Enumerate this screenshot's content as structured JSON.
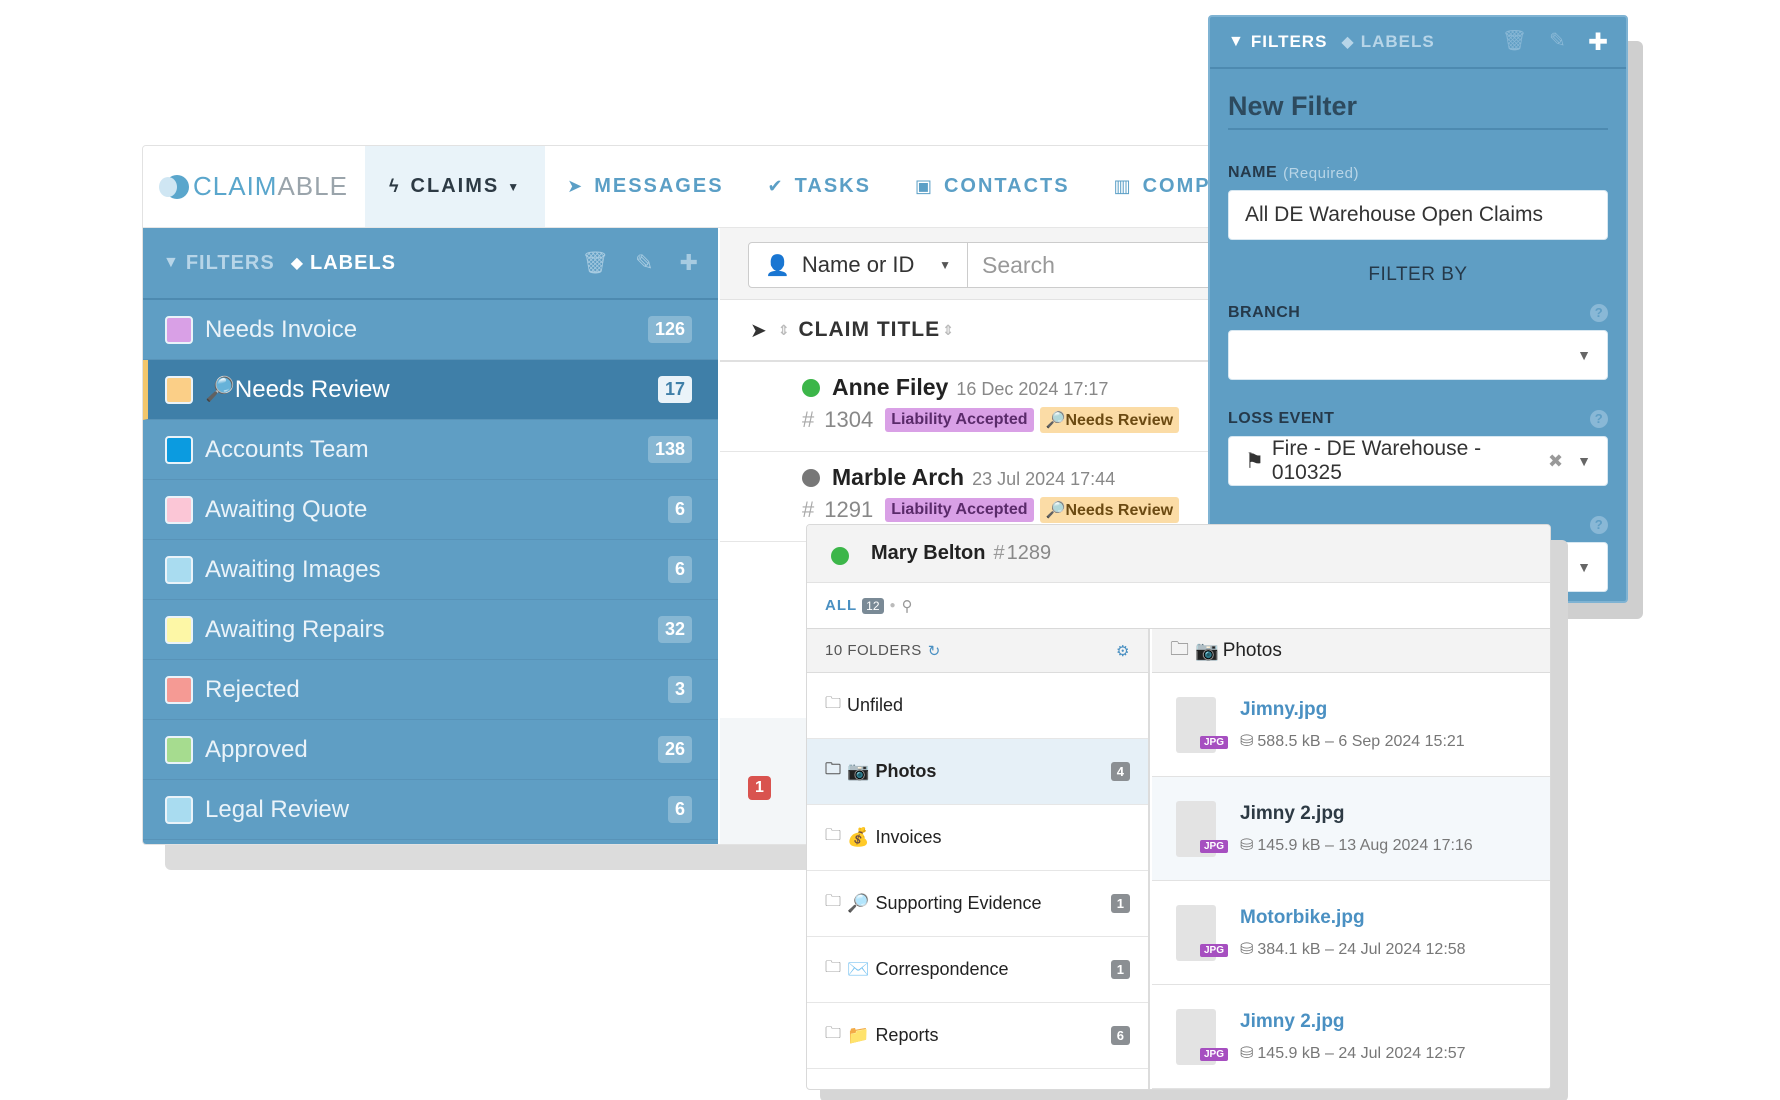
{
  "app": {
    "logo": {
      "accent": "CLAIM",
      "rest": "ABLE"
    },
    "nav": [
      {
        "icon": "bolt-icon",
        "label": "CLAIMS",
        "active": true
      },
      {
        "icon": "paper-plane-icon",
        "label": "MESSAGES"
      },
      {
        "icon": "check-icon",
        "label": "TASKS"
      },
      {
        "icon": "address-card-icon",
        "label": "CONTACTS"
      },
      {
        "icon": "building-icon",
        "label": "COMP"
      }
    ]
  },
  "sidebar": {
    "tabs": {
      "filters": "FILTERS",
      "labels": "LABELS"
    },
    "items": [
      {
        "label": "Needs Invoice",
        "count": "126",
        "color": "#d9a0e6"
      },
      {
        "label": "🔎Needs Review",
        "count": "17",
        "color": "#fbcf87",
        "selected": true
      },
      {
        "label": "Accounts Team",
        "count": "138",
        "color": "#0b9be0"
      },
      {
        "label": "Awaiting Quote",
        "count": "6",
        "color": "#fbc6d6"
      },
      {
        "label": "Awaiting Images",
        "count": "6",
        "color": "#a9dcf0"
      },
      {
        "label": "Awaiting Repairs",
        "count": "32",
        "color": "#fdf7a6"
      },
      {
        "label": "Rejected",
        "count": "3",
        "color": "#f59a94"
      },
      {
        "label": "Approved",
        "count": "26",
        "color": "#a6dc8f"
      },
      {
        "label": "Legal Review",
        "count": "6",
        "color": "#a9dcf0"
      }
    ]
  },
  "search": {
    "type_label": "Name or ID",
    "placeholder": "Search"
  },
  "claims": {
    "column_title": "CLAIM TITLE",
    "rows": [
      {
        "name": "Anne Filey",
        "date": "16 Dec 2024 17:17",
        "number": "1304",
        "status_color": "#3cb649",
        "tags": [
          "Liability Accepted",
          "🔎Needs Review"
        ]
      },
      {
        "name": "Marble Arch",
        "date": "23 Jul 2024 17:44",
        "number": "1291",
        "status_color": "#777777",
        "tags": [
          "Liability Accepted",
          "🔎Needs Review"
        ]
      }
    ],
    "alert_count": "1"
  },
  "filter_panel": {
    "tabs": {
      "filters": "FILTERS",
      "labels": "LABELS"
    },
    "title": "New Filter",
    "name_label": "NAME",
    "name_required": "(Required)",
    "name_value": "All DE Warehouse Open Claims",
    "filter_by": "FILTER BY",
    "branch_label": "BRANCH",
    "branch_value": "",
    "loss_event_label": "LOSS EVENT",
    "loss_event_value": "Fire - DE Warehouse - 010325"
  },
  "files": {
    "claimant": "Mary Belton",
    "claim_number": "1289",
    "status_color": "#3cb649",
    "tab_all": "ALL",
    "tab_all_count": "12",
    "folders_header": "10 FOLDERS",
    "folders": [
      {
        "label": "Unfiled",
        "emoji": "",
        "count": ""
      },
      {
        "label": "Photos",
        "emoji": "📷",
        "count": "4",
        "selected": true
      },
      {
        "label": "Invoices",
        "emoji": "💰",
        "count": ""
      },
      {
        "label": "Supporting Evidence",
        "emoji": "🔎",
        "count": "1"
      },
      {
        "label": "Correspondence",
        "emoji": "✉️",
        "count": "1"
      },
      {
        "label": "Reports",
        "emoji": "📁",
        "count": "6"
      }
    ],
    "current_folder": "Photos",
    "current_folder_emoji": "📷",
    "items": [
      {
        "name": "Jimny.jpg",
        "meta": "588.5 kB – 6 Sep 2024 15:21",
        "type": "JPG"
      },
      {
        "name": "Jimny 2.jpg",
        "meta": "145.9 kB – 13 Aug 2024 17:16",
        "type": "JPG",
        "alt": true
      },
      {
        "name": "Motorbike.jpg",
        "meta": "384.1 kB – 24 Jul 2024 12:58",
        "type": "JPG"
      },
      {
        "name": "Jimny 2.jpg",
        "meta": "145.9 kB – 24 Jul 2024 12:57",
        "type": "JPG"
      }
    ]
  }
}
